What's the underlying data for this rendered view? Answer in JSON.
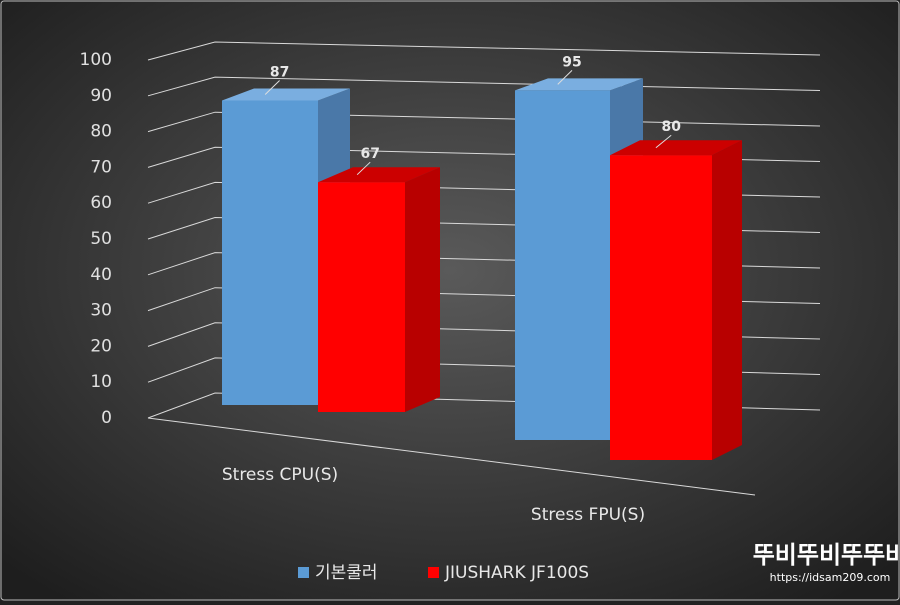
{
  "chart_data": {
    "type": "bar3d",
    "categories": [
      "Stress CPU(S)",
      "Stress FPU(S)"
    ],
    "series": [
      {
        "name": "기본쿨러",
        "color": "#5b9bd5",
        "values": [
          87,
          95
        ]
      },
      {
        "name": "JIUSHARK JF100S",
        "color": "#ff0000",
        "values": [
          67,
          80
        ]
      }
    ],
    "ylim": [
      0,
      100
    ],
    "yticks": [
      0,
      10,
      20,
      30,
      40,
      50,
      60,
      70,
      80,
      90,
      100
    ],
    "grid": true,
    "legend": "bottom",
    "watermark": {
      "title": "뚜비뚜비뚜뚜바",
      "url": "https://idsam209.com"
    }
  }
}
